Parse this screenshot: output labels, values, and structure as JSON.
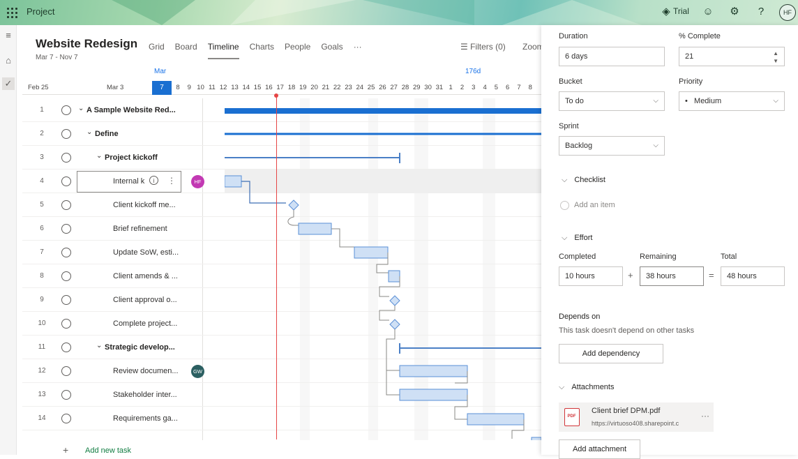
{
  "app": {
    "name": "Project",
    "trial": "Trial",
    "user_initials": "HF"
  },
  "plan": {
    "title": "Website Redesign",
    "dates": "Mar 7 - Nov 7"
  },
  "tabs": [
    "Grid",
    "Board",
    "Timeline",
    "Charts",
    "People",
    "Goals",
    "···"
  ],
  "active_tab": "Timeline",
  "toolbar": {
    "filters": "Filters (0)",
    "zoom": "Zoom"
  },
  "timeline": {
    "month": "Mar",
    "duration_marker": "176d",
    "week_labels": [
      "Feb 25",
      "Mar 3"
    ],
    "today": "7",
    "days": [
      "8",
      "9",
      "10",
      "11",
      "12",
      "13",
      "14",
      "15",
      "16",
      "17",
      "18",
      "19",
      "20",
      "21",
      "22",
      "23",
      "24",
      "25",
      "26",
      "27",
      "28",
      "29",
      "30",
      "31",
      "1",
      "2",
      "3",
      "4",
      "5",
      "6",
      "7",
      "8"
    ]
  },
  "tasks": [
    {
      "num": "1",
      "name": "A Sample Website Red...",
      "level": 0,
      "bold": true
    },
    {
      "num": "2",
      "name": "Define",
      "level": 1,
      "bold": true
    },
    {
      "num": "3",
      "name": "Project kickoff",
      "level": 2,
      "bold": true
    },
    {
      "num": "4",
      "name": "Internal k",
      "level": 3,
      "bold": false,
      "avatar": "HF",
      "avatar_color": "#c239b3"
    },
    {
      "num": "5",
      "name": "Client kickoff me...",
      "level": 3,
      "bold": false
    },
    {
      "num": "6",
      "name": "Brief refinement",
      "level": 3,
      "bold": false
    },
    {
      "num": "7",
      "name": "Update SoW, esti...",
      "level": 3,
      "bold": false
    },
    {
      "num": "8",
      "name": "Client amends & ...",
      "level": 3,
      "bold": false
    },
    {
      "num": "9",
      "name": "Client approval o...",
      "level": 3,
      "bold": false
    },
    {
      "num": "10",
      "name": "Complete project...",
      "level": 3,
      "bold": false
    },
    {
      "num": "11",
      "name": "Strategic develop...",
      "level": 2,
      "bold": true
    },
    {
      "num": "12",
      "name": "Review documen...",
      "level": 3,
      "bold": false,
      "avatar": "GW",
      "avatar_color": "#2b5f61"
    },
    {
      "num": "13",
      "name": "Stakeholder inter...",
      "level": 3,
      "bold": false
    },
    {
      "num": "14",
      "name": "Requirements ga...",
      "level": 3,
      "bold": false
    }
  ],
  "add_task": "Add new task",
  "details": {
    "duration_label": "Duration",
    "duration": "6 days",
    "complete_label": "% Complete",
    "complete": "21",
    "bucket_label": "Bucket",
    "bucket": "To do",
    "priority_label": "Priority",
    "priority": "Medium",
    "sprint_label": "Sprint",
    "sprint": "Backlog",
    "checklist_label": "Checklist",
    "add_item": "Add an item",
    "effort_label": "Effort",
    "completed_label": "Completed",
    "completed": "10 hours",
    "remaining_label": "Remaining",
    "remaining": "38 hours",
    "total_label": "Total",
    "total": "48 hours",
    "depends_label": "Depends on",
    "depends_text": "This task doesn't depend on other tasks",
    "add_dependency": "Add dependency",
    "attachments_label": "Attachments",
    "attachment_name": "Client brief DPM.pdf",
    "attachment_url": "https://virtuoso408.sharepoint.c",
    "add_attachment": "Add attachment"
  },
  "colors": {
    "accent": "#1a6fd1",
    "today_line": "#e64545",
    "bar_fill": "#cfe0f5",
    "bar_border": "#5a8fd6"
  }
}
